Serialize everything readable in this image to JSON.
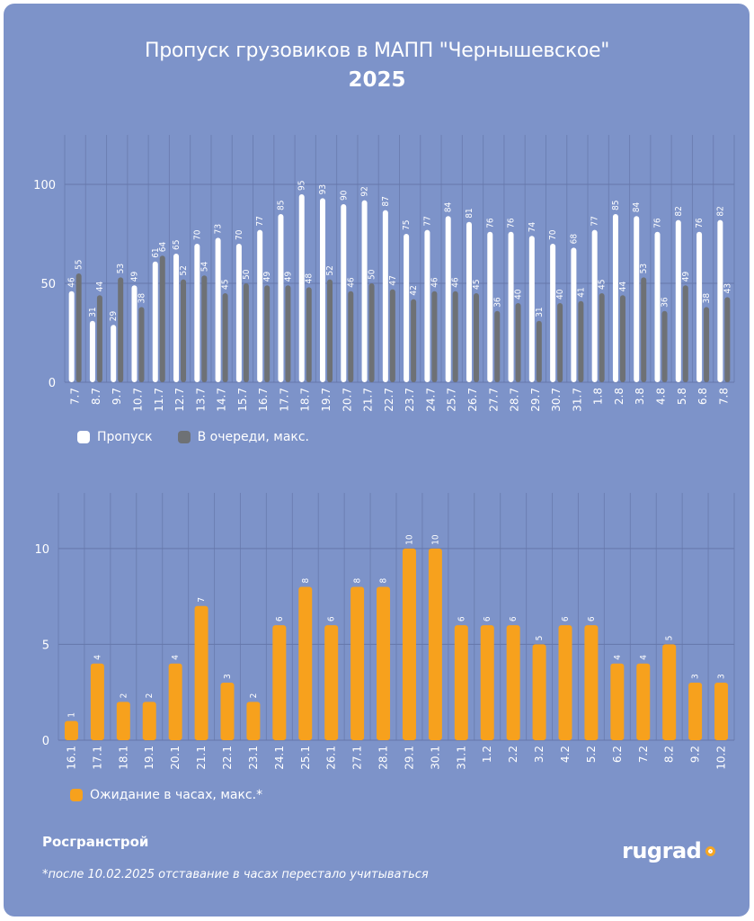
{
  "header": {
    "title": "Пропуск грузовиков в МАПП \"Чернышевское\"",
    "subtitle": "2025"
  },
  "colors": {
    "background": "#7d93c9",
    "pass": "#ffffff",
    "queue": "#6e7175",
    "waiting": "#f7a11d",
    "grid": "#6677aa"
  },
  "chart_data": [
    {
      "type": "bar",
      "categories": [
        "7.7",
        "8.7",
        "9.7",
        "10.7",
        "11.7",
        "12.7",
        "13.7",
        "14.7",
        "15.7",
        "16.7",
        "17.7",
        "18.7",
        "19.7",
        "20.7",
        "21.7",
        "22.7",
        "23.7",
        "24.7",
        "25.7",
        "26.7",
        "27.7",
        "28.7",
        "29.7",
        "30.7",
        "31.7",
        "1.8",
        "2.8",
        "3.8",
        "4.8",
        "5.8",
        "6.8",
        "7.8"
      ],
      "series": [
        {
          "name": "Пропуск",
          "values": [
            46,
            31,
            29,
            49,
            61,
            65,
            70,
            73,
            70,
            77,
            85,
            95,
            93,
            90,
            92,
            87,
            75,
            77,
            84,
            81,
            76,
            76,
            74,
            70,
            68,
            77,
            85,
            84,
            76,
            82,
            76,
            82
          ]
        },
        {
          "name": "В очереди, макс.",
          "values": [
            55,
            44,
            53,
            38,
            64,
            52,
            54,
            45,
            50,
            49,
            49,
            48,
            52,
            46,
            50,
            47,
            42,
            46,
            46,
            45,
            36,
            40,
            31,
            40,
            41,
            45,
            44,
            53,
            36,
            49,
            38,
            43
          ]
        }
      ],
      "yticks": [
        0,
        50,
        100
      ],
      "ylim": [
        0,
        125
      ],
      "grid": true,
      "legend": "bottom-left"
    },
    {
      "type": "bar",
      "categories": [
        "16.1",
        "17.1",
        "18.1",
        "19.1",
        "20.1",
        "21.1",
        "22.1",
        "23.1",
        "24.1",
        "25.1",
        "26.1",
        "27.1",
        "28.1",
        "29.1",
        "30.1",
        "31.1",
        "1.2",
        "2.2",
        "3.2",
        "4.2",
        "5.2",
        "6.2",
        "7.2",
        "8.2",
        "9.2",
        "10.2"
      ],
      "series": [
        {
          "name": "Ожидание в часах, макс.*",
          "values": [
            1,
            4,
            2,
            2,
            4,
            7,
            3,
            2,
            6,
            8,
            6,
            8,
            8,
            10,
            10,
            6,
            6,
            6,
            5,
            6,
            6,
            4,
            4,
            5,
            3,
            3
          ]
        }
      ],
      "yticks": [
        0,
        5,
        10
      ],
      "ylim": [
        0,
        12.9
      ],
      "grid": true,
      "legend": "bottom-left"
    }
  ],
  "footer": {
    "source": "Росгранстрой",
    "footnote": "*после 10.02.2025 отставание в часах перестало учитываться",
    "logo": "rugrad"
  }
}
